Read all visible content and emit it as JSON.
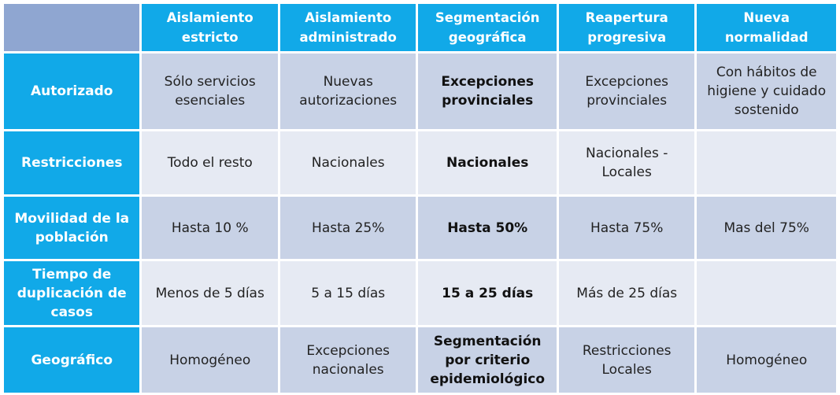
{
  "table": {
    "columns": [
      "",
      "Aislamiento estricto",
      "Aislamiento administrado",
      "Segmentación geográfica",
      "Reapertura progresiva",
      "Nueva normalidad"
    ],
    "rows": [
      {
        "label": "Autorizado",
        "cells": [
          "Sólo servicios esenciales",
          "Nuevas autorizaciones",
          "Excepciones provinciales",
          "Excepciones provinciales",
          "Con hábitos de higiene y cuidado sostenido"
        ]
      },
      {
        "label": "Restricciones",
        "cells": [
          "Todo el resto",
          "Nacionales",
          "Nacionales",
          "Nacionales - Locales",
          ""
        ]
      },
      {
        "label": "Movilidad de la población",
        "cells": [
          "Hasta 10 %",
          "Hasta 25%",
          "Hasta 50%",
          "Hasta 75%",
          "Mas del 75%"
        ]
      },
      {
        "label": "Tiempo de duplicación de casos",
        "cells": [
          "Menos de 5 días",
          "5 a 15 días",
          "15 a 25 días",
          "Más de 25 días",
          ""
        ]
      },
      {
        "label": "Geográfico",
        "cells": [
          "Homogéneo",
          "Excepciones nacionales",
          "Segmentación por criterio epidemiológico",
          "Restricciones Locales",
          "Homogéneo"
        ]
      }
    ]
  },
  "colors": {
    "header_blue": "#11a9e8",
    "corner": "#8fa6d1",
    "row_dark": "#c8d2e6",
    "row_light": "#e6eaf3"
  }
}
